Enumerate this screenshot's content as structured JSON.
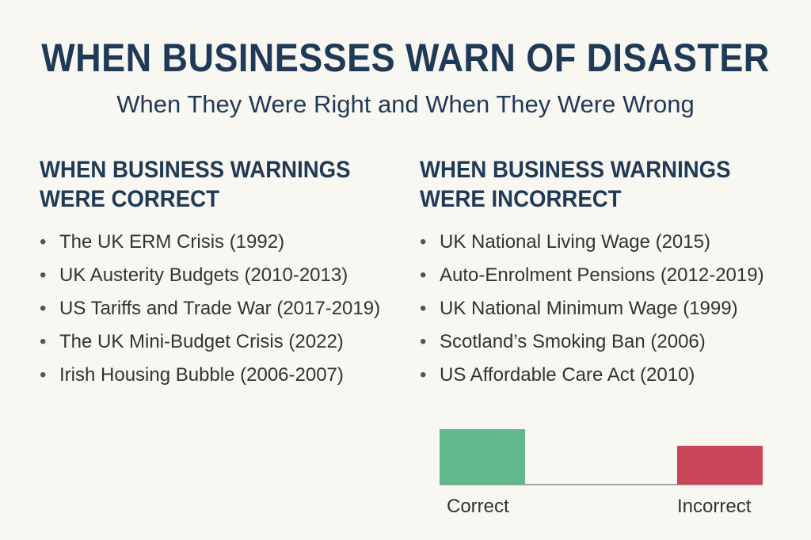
{
  "title": "WHEN BUSINESSES WARN OF DISASTER",
  "subtitle": "When They Were Right and When They Were Wrong",
  "correct": {
    "heading": "WHEN BUSINESS WARNINGS WERE CORRECT",
    "items": [
      "The UK ERM Crisis (1992)",
      "UK Austerity Budgets (2010-2013)",
      "US Tariffs and Trade War (2017-2019)",
      "The UK Mini-Budget Crisis (2022)",
      "Irish Housing Bubble (2006-2007)"
    ]
  },
  "incorrect": {
    "heading": "WHEN BUSINESS WARNINGS WERE INCORRECT",
    "items": [
      "UK National Living Wage (2015)",
      "Auto-Enrolment Pensions (2012-2019)",
      "UK National Minimum Wage (1999)",
      "Scotland’s Smoking Ban (2006)",
      "US Affordable Care Act (2010)"
    ]
  },
  "chart_data": {
    "type": "bar",
    "categories": [
      "Correct",
      "Incorrect"
    ],
    "values": [
      100,
      70
    ],
    "colors": [
      "#62b78c",
      "#c84658"
    ],
    "title": "",
    "xlabel": "",
    "ylabel": "",
    "ylim": [
      0,
      100
    ]
  }
}
